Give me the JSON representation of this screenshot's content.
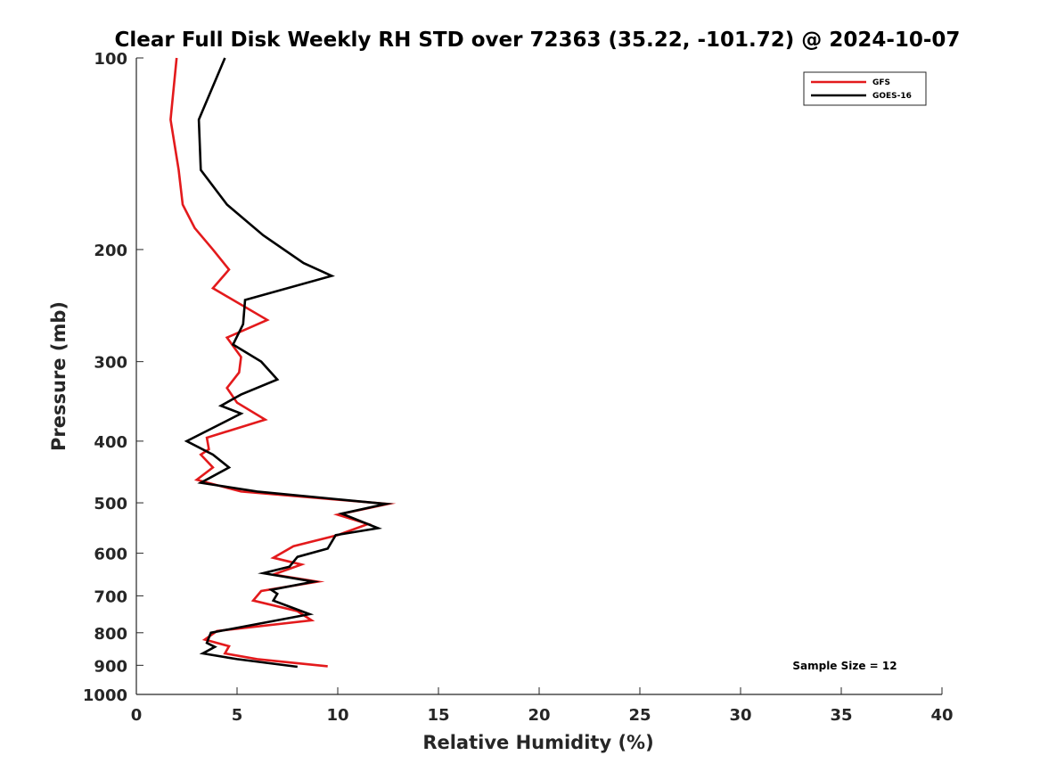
{
  "chart_data": {
    "type": "line",
    "title": "Clear Full Disk Weekly RH STD over 72363 (35.22, -101.72) @ 2024-10-07",
    "xlabel": "Relative Humidity (%)",
    "ylabel": "Pressure (mb)",
    "xlim": [
      0,
      40
    ],
    "ylim": [
      100,
      1000
    ],
    "y_scale": "log",
    "y_reversed": true,
    "grid": false,
    "x_ticks": [
      0,
      5,
      10,
      15,
      20,
      25,
      30,
      35,
      40
    ],
    "y_ticks": [
      100,
      200,
      300,
      400,
      500,
      600,
      700,
      800,
      900,
      1000
    ],
    "legend_position": "top-right",
    "annotation": "Sample Size = 12",
    "series": [
      {
        "name": "GFS",
        "color": "#e31a1c",
        "points": [
          [
            2.0,
            100
          ],
          [
            1.7,
            125
          ],
          [
            2.1,
            150
          ],
          [
            2.3,
            170
          ],
          [
            2.9,
            185
          ],
          [
            3.8,
            200
          ],
          [
            4.6,
            215
          ],
          [
            3.8,
            230
          ],
          [
            6.5,
            258
          ],
          [
            4.5,
            275
          ],
          [
            5.2,
            295
          ],
          [
            5.1,
            312
          ],
          [
            4.5,
            330
          ],
          [
            5.0,
            348
          ],
          [
            6.4,
            370
          ],
          [
            3.5,
            395
          ],
          [
            3.6,
            412
          ],
          [
            3.2,
            420
          ],
          [
            3.8,
            440
          ],
          [
            3.0,
            460
          ],
          [
            5.2,
            480
          ],
          [
            12.5,
            502
          ],
          [
            10.0,
            522
          ],
          [
            11.5,
            540
          ],
          [
            10.0,
            562
          ],
          [
            7.8,
            585
          ],
          [
            6.8,
            610
          ],
          [
            8.2,
            625
          ],
          [
            6.8,
            648
          ],
          [
            9.0,
            665
          ],
          [
            6.2,
            688
          ],
          [
            5.8,
            712
          ],
          [
            8.0,
            740
          ],
          [
            8.7,
            765
          ],
          [
            4.0,
            795
          ],
          [
            3.4,
            820
          ],
          [
            4.6,
            840
          ],
          [
            4.4,
            862
          ],
          [
            6.0,
            880
          ],
          [
            9.5,
            903
          ]
        ]
      },
      {
        "name": "GOES-16",
        "color": "#000000",
        "points": [
          [
            4.4,
            100
          ],
          [
            3.1,
            125
          ],
          [
            3.2,
            150
          ],
          [
            4.5,
            170
          ],
          [
            6.3,
            190
          ],
          [
            8.3,
            210
          ],
          [
            9.7,
            220
          ],
          [
            5.4,
            240
          ],
          [
            5.3,
            262
          ],
          [
            4.8,
            282
          ],
          [
            6.2,
            300
          ],
          [
            7.0,
            320
          ],
          [
            5.2,
            338
          ],
          [
            4.2,
            352
          ],
          [
            5.2,
            362
          ],
          [
            2.5,
            400
          ],
          [
            3.8,
            420
          ],
          [
            4.6,
            440
          ],
          [
            3.2,
            465
          ],
          [
            6.0,
            480
          ],
          [
            12.4,
            502
          ],
          [
            10.2,
            520
          ],
          [
            12.0,
            548
          ],
          [
            9.9,
            562
          ],
          [
            9.5,
            590
          ],
          [
            8.0,
            608
          ],
          [
            7.6,
            630
          ],
          [
            6.3,
            645
          ],
          [
            8.8,
            665
          ],
          [
            6.7,
            685
          ],
          [
            7.0,
            695
          ],
          [
            6.8,
            712
          ],
          [
            8.6,
            748
          ],
          [
            3.7,
            800
          ],
          [
            3.5,
            830
          ],
          [
            3.9,
            842
          ],
          [
            3.3,
            862
          ],
          [
            5.0,
            880
          ],
          [
            8.0,
            905
          ]
        ]
      }
    ]
  }
}
